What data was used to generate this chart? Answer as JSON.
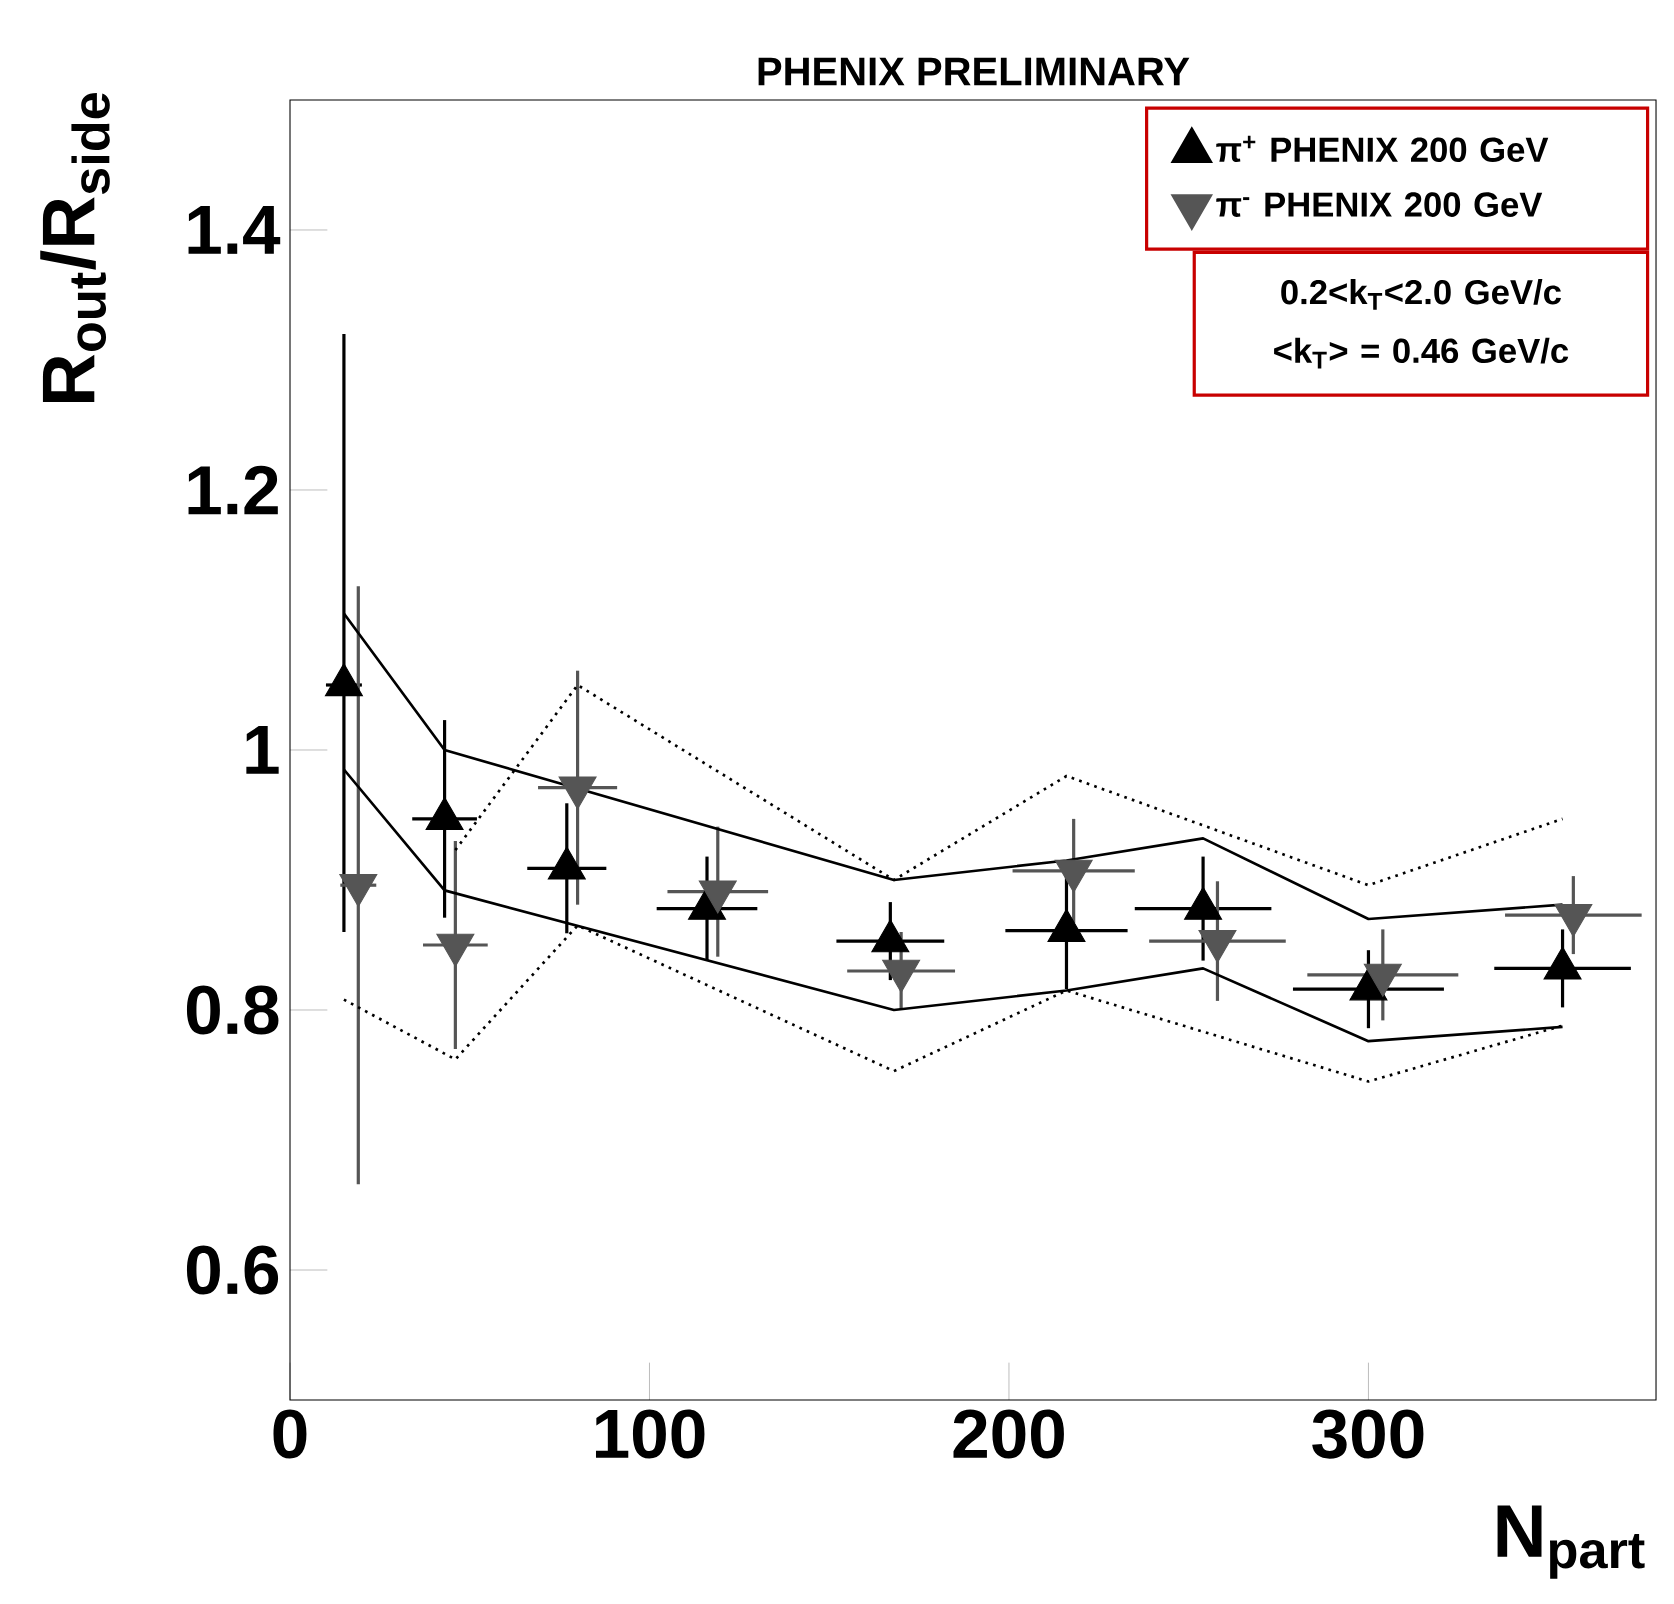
{
  "chart_data": {
    "type": "scatter",
    "title": "PHENIX PRELIMINARY",
    "xlabel": "N$_{part}$",
    "ylabel": "R$_{out}$/R$_{side}$",
    "xlim": [
      0,
      380
    ],
    "xticks": [
      0,
      100,
      200,
      300
    ],
    "ylim": [
      0.5,
      1.5
    ],
    "yticks": [
      {
        "value": 0.6,
        "label": "0.6"
      },
      {
        "value": 0.8,
        "label": "0.8"
      },
      {
        "value": 1,
        "label": "1"
      },
      {
        "value": 1.2,
        "label": "1.2"
      },
      {
        "value": 1.4,
        "label": "1.4"
      }
    ],
    "legend": "top right",
    "grid": false,
    "annotations": [
      "0.2<k$_{T}$<2.0 GeV/c",
      "<k$_{T}$> = 0.46 GeV/c"
    ],
    "series": [
      {
        "name": "π$^{+}$ PHENIX 200 GeV",
        "type": "scatter",
        "marker": "triangle",
        "color": "#000000",
        "x": [
          15,
          43,
          77,
          116,
          167,
          216,
          254,
          300,
          354
        ],
        "values": [
          1.05,
          0.947,
          0.909,
          0.878,
          0.853,
          0.861,
          0.878,
          0.816,
          0.832
        ],
        "errors": [
          [
            0.86,
            1.32
          ],
          0.076,
          0.05,
          0.04,
          0.03,
          0.045,
          0.04,
          0.03,
          0.03
        ],
        "xerrors": [
          5,
          9,
          11,
          14,
          15,
          17,
          19,
          21,
          19
        ]
      },
      {
        "name": "π$^{-}$ PHENIX 200 GeV",
        "type": "scatter",
        "marker": "triangle_down",
        "color": "#555555",
        "x": [
          19,
          46,
          80,
          119,
          170,
          218,
          258,
          304,
          357
        ],
        "values": [
          0.896,
          0.85,
          0.971,
          0.891,
          0.83,
          0.907,
          0.853,
          0.827,
          0.873
        ],
        "errors": [
          0.23,
          0.08,
          0.09,
          0.05,
          0.03,
          0.04,
          0.046,
          0.035,
          0.03
        ],
        "xerrors": [
          5,
          9,
          11,
          14,
          15,
          17,
          19,
          21,
          19
        ]
      },
      {
        "type": "line",
        "marker": "none",
        "line_style": "solid",
        "color": "#000000",
        "x": [
          15,
          43,
          168,
          216,
          254,
          300,
          354
        ],
        "values": [
          1.105,
          1.0,
          0.9,
          0.915,
          0.932,
          0.87,
          0.881
        ]
      },
      {
        "type": "line",
        "marker": "none",
        "line_style": "solid",
        "color": "#000000",
        "x": [
          15,
          43,
          168,
          216,
          254,
          300,
          354
        ],
        "values": [
          0.985,
          0.892,
          0.8,
          0.815,
          0.832,
          0.776,
          0.787
        ]
      },
      {
        "type": "line",
        "marker": "none",
        "line_style": "dotted",
        "color": "#000000",
        "x": [
          46,
          80,
          168,
          216,
          300,
          354
        ],
        "values": [
          0.923,
          1.05,
          0.9,
          0.98,
          0.896,
          0.947
        ]
      },
      {
        "type": "line",
        "marker": "none",
        "line_style": "dotted",
        "color": "#000000",
        "x": [
          15,
          46,
          80,
          168,
          216,
          300,
          354
        ],
        "values": [
          0.808,
          0.762,
          0.865,
          0.753,
          0.815,
          0.745,
          0.788
        ]
      }
    ]
  }
}
